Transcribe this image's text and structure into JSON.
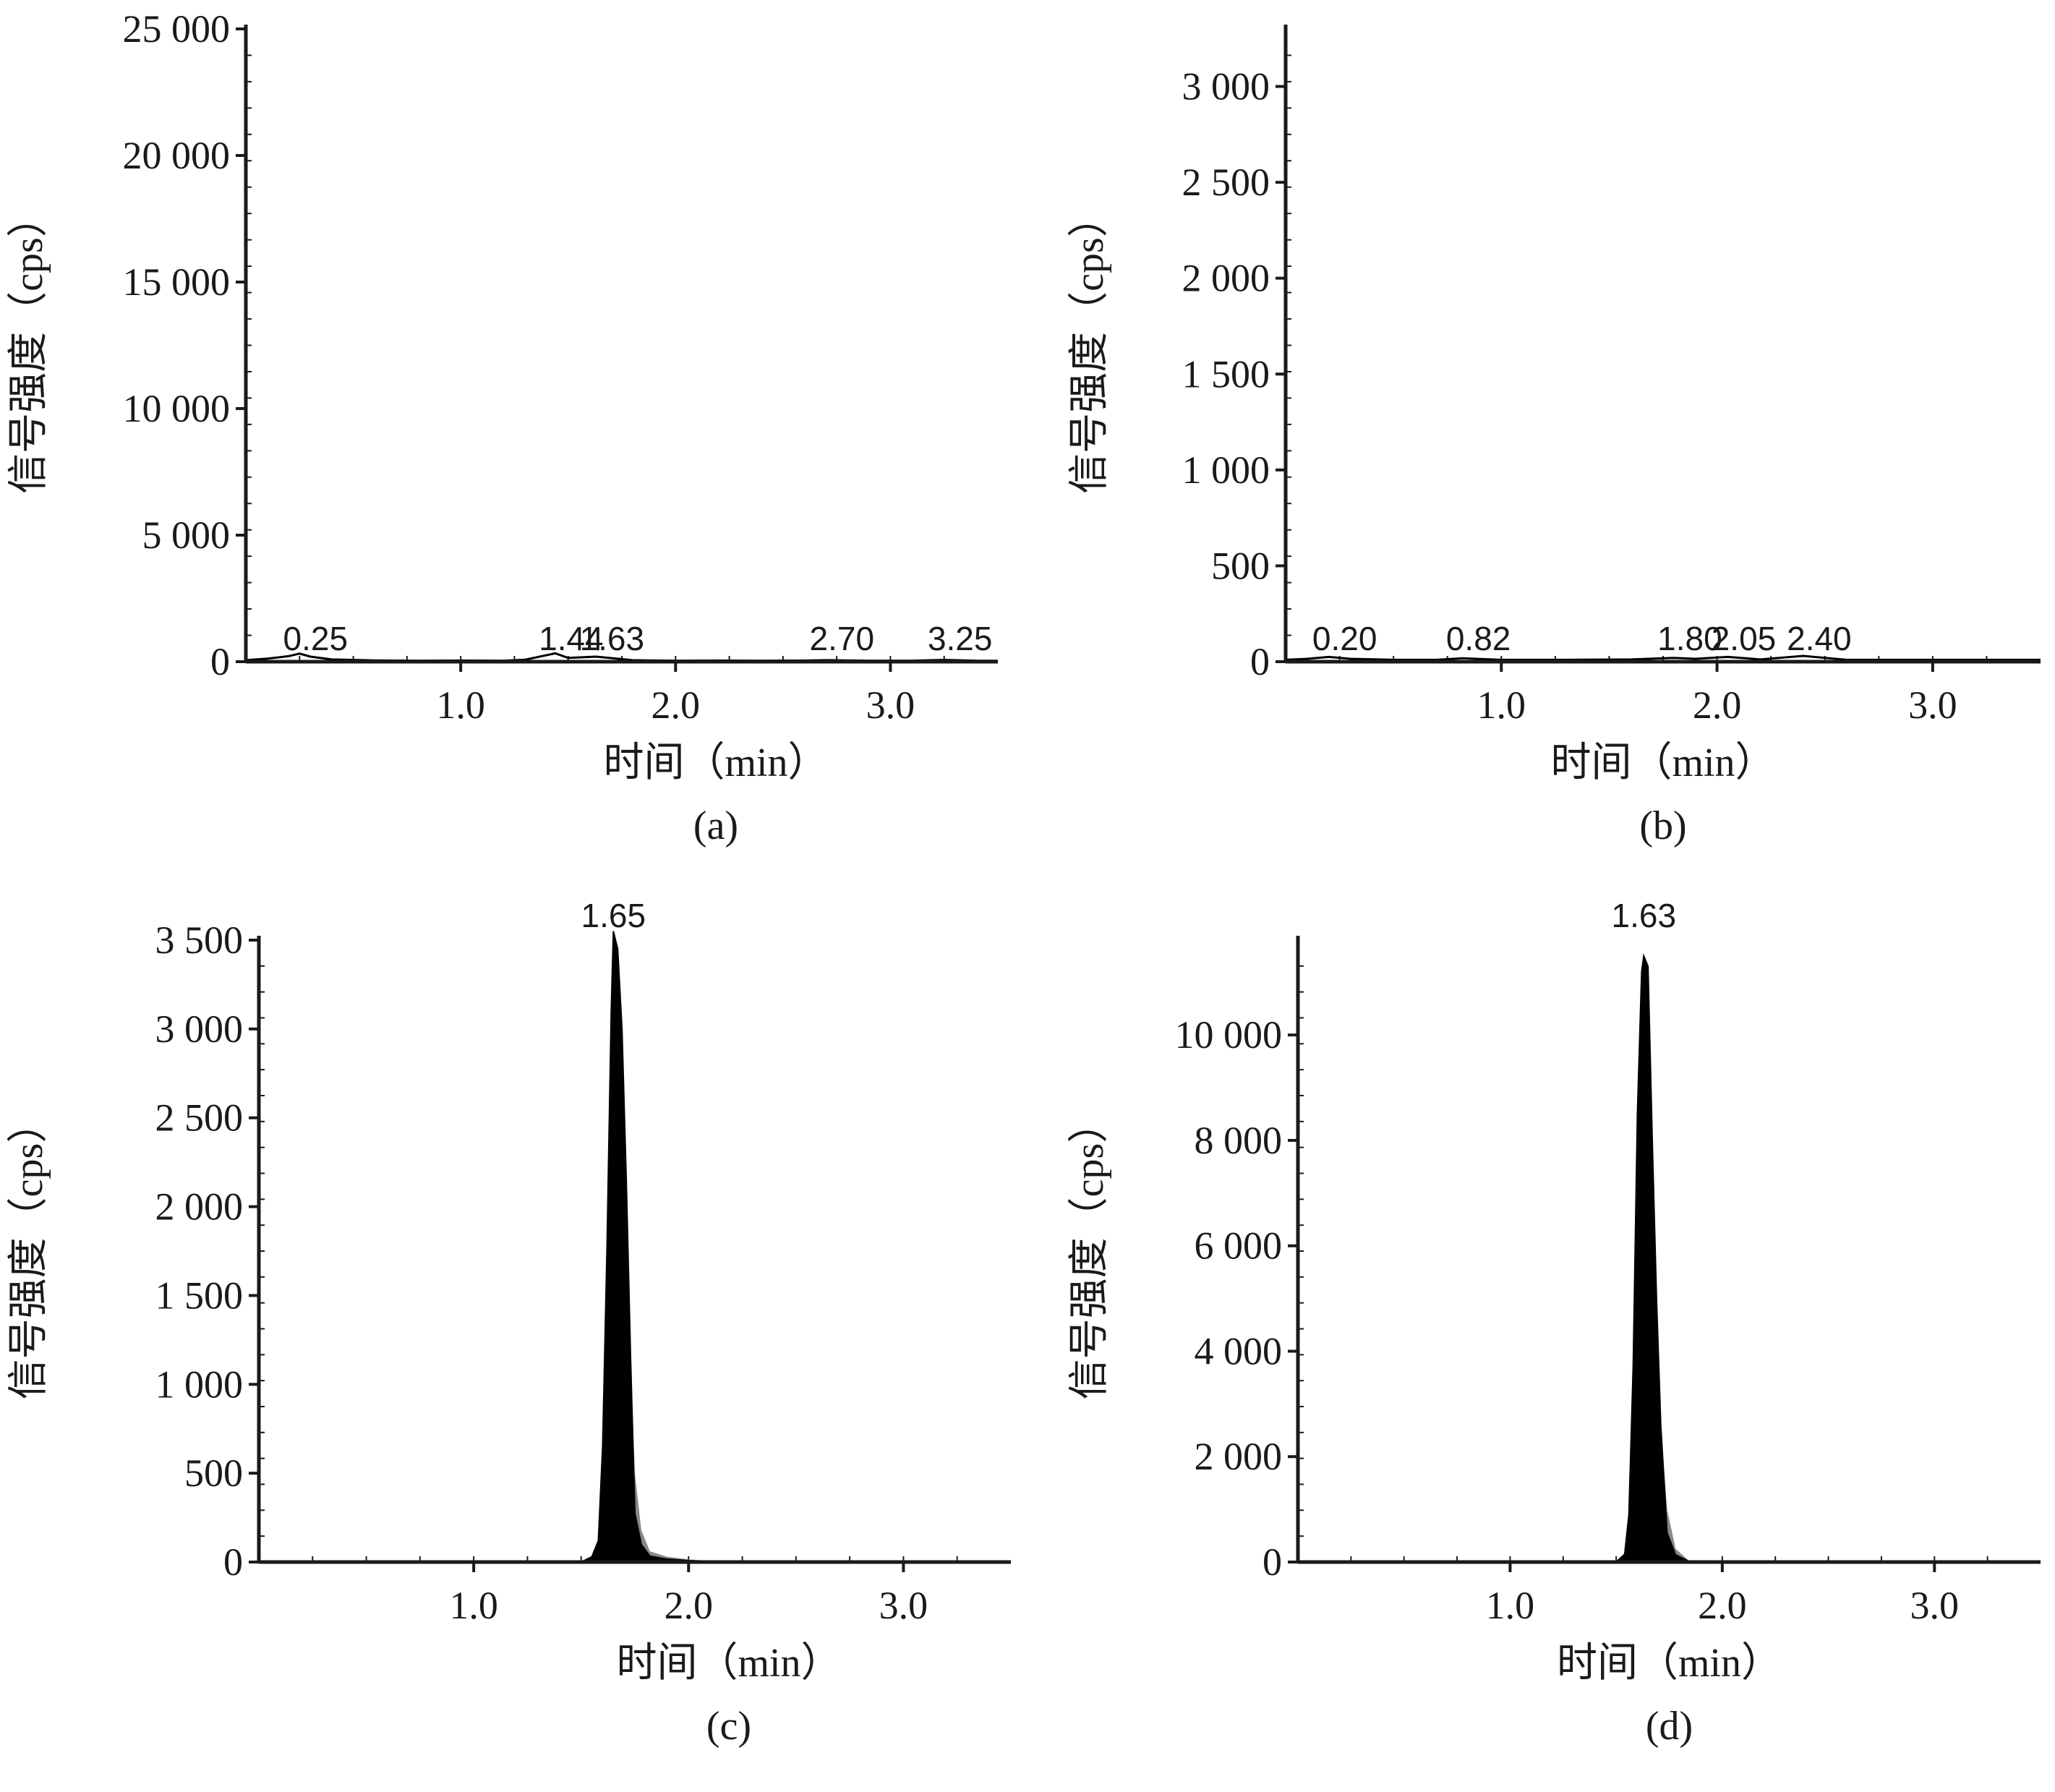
{
  "figure": {
    "panels": [
      "(a)",
      "(b)",
      "(c)",
      "(d)"
    ]
  },
  "colors": {
    "axis": "#1a1a1a",
    "signal": "#000000",
    "background": "#ffffff",
    "tail": "#888888"
  },
  "chart_data": [
    {
      "panel_label": "(a)",
      "type": "line",
      "xlabel": "时间（min）",
      "ylabel": "信号强度（cps）",
      "xlim": [
        0,
        3.5
      ],
      "ylim": [
        0,
        25000
      ],
      "x_ticks": [
        1.0,
        2.0,
        3.0
      ],
      "x_tick_labels": [
        "1.0",
        "2.0",
        "3.0"
      ],
      "y_ticks": [
        0,
        5000,
        10000,
        15000,
        20000,
        25000
      ],
      "y_tick_labels": [
        "0",
        "5 000",
        "10 000",
        "15 000",
        "20 000",
        "25 000"
      ],
      "peak_labels": [
        {
          "x": 0.25,
          "text": "0.25"
        },
        {
          "x": 1.44,
          "text": "1.44"
        },
        {
          "x": 1.63,
          "text": "1.63"
        },
        {
          "x": 2.7,
          "text": "2.70"
        },
        {
          "x": 3.25,
          "text": "3.25"
        }
      ],
      "series": [
        {
          "x": [
            0.0,
            0.1,
            0.2,
            0.25,
            0.3,
            0.4,
            0.6,
            0.8,
            1.0,
            1.2,
            1.3,
            1.44,
            1.5,
            1.63,
            1.8,
            2.0,
            2.2,
            2.4,
            2.6,
            2.7,
            2.9,
            3.1,
            3.25,
            3.4,
            3.5
          ],
          "values": [
            60,
            120,
            220,
            320,
            200,
            90,
            50,
            40,
            45,
            40,
            80,
            330,
            150,
            200,
            60,
            40,
            45,
            40,
            45,
            60,
            40,
            40,
            70,
            40,
            35
          ]
        }
      ]
    },
    {
      "panel_label": "(b)",
      "type": "line",
      "xlabel": "时间（min）",
      "ylabel": "信号强度（cps）",
      "xlim": [
        0,
        3.5
      ],
      "ylim": [
        0,
        3300
      ],
      "x_ticks": [
        1.0,
        2.0,
        3.0
      ],
      "x_tick_labels": [
        "1.0",
        "2.0",
        "3.0"
      ],
      "y_ticks": [
        0,
        500,
        1000,
        1500,
        2000,
        2500,
        3000
      ],
      "y_tick_labels": [
        "0",
        "500",
        "1 000",
        "1 500",
        "2 000",
        "2 500",
        "3 000"
      ],
      "peak_labels": [
        {
          "x": 0.2,
          "text": "0.20"
        },
        {
          "x": 0.82,
          "text": "0.82"
        },
        {
          "x": 1.8,
          "text": "1.80"
        },
        {
          "x": 2.05,
          "text": "2.05"
        },
        {
          "x": 2.4,
          "text": "2.40"
        }
      ],
      "series": [
        {
          "x": [
            0.0,
            0.1,
            0.2,
            0.3,
            0.5,
            0.7,
            0.82,
            1.0,
            1.3,
            1.6,
            1.8,
            1.9,
            2.05,
            2.2,
            2.4,
            2.6,
            2.9,
            3.2,
            3.5
          ],
          "values": [
            10,
            15,
            25,
            15,
            10,
            10,
            18,
            10,
            10,
            12,
            20,
            15,
            25,
            12,
            30,
            10,
            10,
            10,
            10
          ]
        }
      ]
    },
    {
      "panel_label": "(c)",
      "type": "area",
      "xlabel": "时间（min）",
      "ylabel": "信号强度（cps）",
      "xlim": [
        0,
        3.5
      ],
      "ylim": [
        0,
        3500
      ],
      "x_ticks": [
        1.0,
        2.0,
        3.0
      ],
      "x_tick_labels": [
        "1.0",
        "2.0",
        "3.0"
      ],
      "y_ticks": [
        0,
        500,
        1000,
        1500,
        2000,
        2500,
        3000,
        3500
      ],
      "y_tick_labels": [
        "0",
        "500",
        "1 000",
        "1 500",
        "2 000",
        "2 500",
        "3 000",
        "3 500"
      ],
      "peak_labels": [
        {
          "x": 1.65,
          "text": "1.65"
        }
      ],
      "series": [
        {
          "x": [
            0.0,
            1.5,
            1.55,
            1.58,
            1.6,
            1.62,
            1.64,
            1.65,
            1.67,
            1.69,
            1.71,
            1.73,
            1.75,
            1.78,
            1.82,
            1.9,
            2.0,
            2.2,
            3.5
          ],
          "values": [
            0,
            0,
            30,
            120,
            650,
            1750,
            3100,
            3550,
            3450,
            3000,
            2150,
            1150,
            500,
            180,
            60,
            30,
            15,
            0,
            0
          ]
        }
      ]
    },
    {
      "panel_label": "(d)",
      "type": "area",
      "xlabel": "时间（min）",
      "ylabel": "信号强度（cps）",
      "xlim": [
        0,
        3.5
      ],
      "ylim": [
        0,
        11800
      ],
      "x_ticks": [
        1.0,
        2.0,
        3.0
      ],
      "x_tick_labels": [
        "1.0",
        "2.0",
        "3.0"
      ],
      "y_ticks": [
        0,
        2000,
        4000,
        6000,
        8000,
        10000
      ],
      "y_tick_labels": [
        "0",
        "2 000",
        "4 000",
        "6 000",
        "8 000",
        "10 000"
      ],
      "peak_labels": [
        {
          "x": 1.63,
          "text": "1.63"
        }
      ],
      "series": [
        {
          "x": [
            0.0,
            1.5,
            1.54,
            1.56,
            1.58,
            1.6,
            1.62,
            1.63,
            1.65,
            1.67,
            1.69,
            1.71,
            1.74,
            1.78,
            1.85,
            3.5
          ],
          "values": [
            0,
            0,
            150,
            900,
            3700,
            8500,
            11200,
            11500,
            11300,
            8000,
            5000,
            2600,
            1000,
            250,
            0,
            0
          ]
        }
      ]
    }
  ]
}
